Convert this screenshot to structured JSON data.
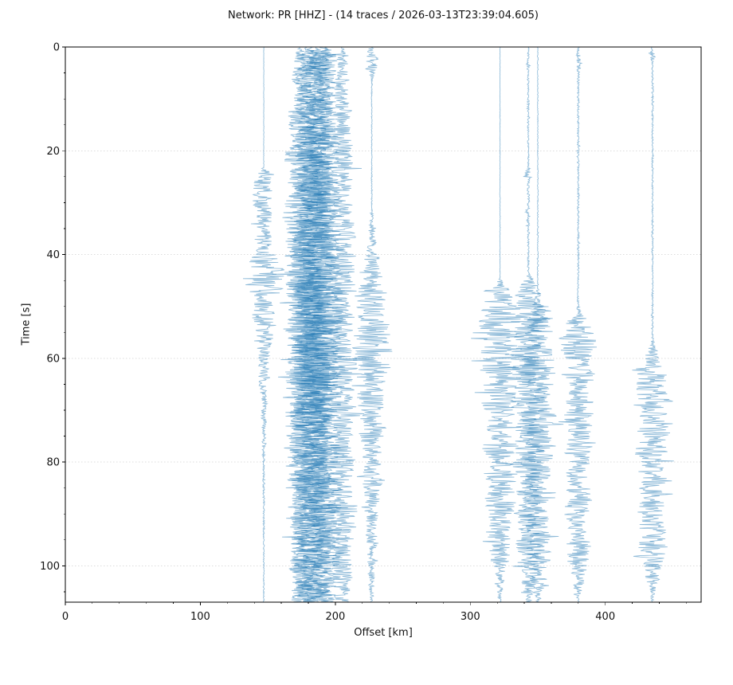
{
  "figure": {
    "network": "PR",
    "channel": "HHZ",
    "trace_count": 14,
    "timestamp": "2026-03-13T23:39:04.605"
  },
  "chart_data": {
    "type": "line",
    "variant": "seismic-record-section",
    "title": "Network: PR [HHZ] - (14 traces / 2026-03-13T23:39:04.605)",
    "xlabel": "Offset [km]",
    "ylabel": "Time [s]",
    "xlim": [
      0,
      471
    ],
    "ylim": [
      0,
      107
    ],
    "y_inverted": true,
    "x_major_ticks": [
      0,
      100,
      200,
      300,
      400
    ],
    "x_minor_step": 20,
    "y_major_ticks": [
      0,
      20,
      40,
      60,
      80,
      100
    ],
    "y_minor_step": 5,
    "grid": {
      "horizontal": true,
      "vertical": false,
      "color": "#dcdcdc",
      "style": "dotted"
    },
    "trace_color": "#1f77b4",
    "trace_alpha": 0.5,
    "spine_color": "#000000",
    "traces": [
      {
        "offset_km": 147,
        "seed": 101,
        "envelope": [
          [
            0,
            0.18
          ],
          [
            23.2,
            0.2
          ],
          [
            24,
            5
          ],
          [
            26,
            8.5
          ],
          [
            29,
            9.5
          ],
          [
            33,
            8
          ],
          [
            36,
            6
          ],
          [
            39,
            9
          ],
          [
            41,
            16
          ],
          [
            43,
            19
          ],
          [
            46,
            18
          ],
          [
            49,
            14
          ],
          [
            53,
            10.5
          ],
          [
            57,
            8
          ],
          [
            62,
            5.5
          ],
          [
            67,
            3.5
          ],
          [
            73,
            2.2
          ],
          [
            80,
            1.2
          ],
          [
            88,
            0.7
          ],
          [
            100,
            0.55
          ],
          [
            107,
            0.5
          ]
        ]
      },
      {
        "offset_km": 174,
        "seed": 202,
        "envelope": [
          [
            0,
            0.6
          ],
          [
            1,
            4.5
          ],
          [
            6,
            8.5
          ],
          [
            15,
            10.5
          ],
          [
            28,
            12.5
          ],
          [
            42,
            14.5
          ],
          [
            55,
            14
          ],
          [
            68,
            12
          ],
          [
            80,
            11
          ],
          [
            92,
            10
          ],
          [
            100,
            9
          ],
          [
            107,
            8.5
          ]
        ]
      },
      {
        "offset_km": 178,
        "seed": 303,
        "envelope": [
          [
            0,
            1
          ],
          [
            1.5,
            9.5
          ],
          [
            3,
            7
          ],
          [
            10,
            10.5
          ],
          [
            22,
            12.5
          ],
          [
            36,
            14.5
          ],
          [
            50,
            16.5
          ],
          [
            62,
            15
          ],
          [
            75,
            13
          ],
          [
            88,
            12
          ],
          [
            100,
            11
          ],
          [
            107,
            10
          ]
        ]
      },
      {
        "offset_km": 182,
        "seed": 404,
        "envelope": [
          [
            0,
            1.4
          ],
          [
            2,
            11.5
          ],
          [
            5,
            8.5
          ],
          [
            14,
            11.5
          ],
          [
            27,
            13.5
          ],
          [
            41,
            15.5
          ],
          [
            54,
            16.5
          ],
          [
            67,
            15
          ],
          [
            80,
            13
          ],
          [
            93,
            12
          ],
          [
            103,
            11
          ],
          [
            107,
            9
          ]
        ]
      },
      {
        "offset_km": 186,
        "seed": 505,
        "envelope": [
          [
            0,
            1
          ],
          [
            2.5,
            12.5
          ],
          [
            6,
            9.5
          ],
          [
            16,
            11.5
          ],
          [
            30,
            14.5
          ],
          [
            45,
            16.5
          ],
          [
            58,
            15.5
          ],
          [
            70,
            14
          ],
          [
            83,
            12
          ],
          [
            96,
            11
          ],
          [
            107,
            10
          ]
        ]
      },
      {
        "offset_km": 190,
        "seed": 606,
        "envelope": [
          [
            0,
            1.8
          ],
          [
            1.2,
            13.5
          ],
          [
            4,
            8.5
          ],
          [
            12,
            10.5
          ],
          [
            25,
            12.5
          ],
          [
            40,
            15.5
          ],
          [
            53,
            16.5
          ],
          [
            66,
            15
          ],
          [
            79,
            13
          ],
          [
            91,
            12
          ],
          [
            102,
            10
          ],
          [
            107,
            9
          ]
        ]
      },
      {
        "offset_km": 194,
        "seed": 707,
        "envelope": [
          [
            0,
            1
          ],
          [
            2,
            10.5
          ],
          [
            8,
            8.5
          ],
          [
            20,
            11.5
          ],
          [
            34,
            13.5
          ],
          [
            48,
            15.5
          ],
          [
            61,
            14
          ],
          [
            74,
            13
          ],
          [
            86,
            12
          ],
          [
            97,
            10
          ],
          [
            104,
            9
          ],
          [
            107,
            7
          ]
        ]
      },
      {
        "offset_km": 205,
        "seed": 808,
        "envelope": [
          [
            0,
            0.5
          ],
          [
            1.5,
            5.5
          ],
          [
            6,
            6.5
          ],
          [
            16,
            8.5
          ],
          [
            30,
            10.5
          ],
          [
            44,
            12.5
          ],
          [
            57,
            11.5
          ],
          [
            70,
            11
          ],
          [
            82,
            10
          ],
          [
            90,
            12
          ],
          [
            96,
            9
          ],
          [
            101,
            11
          ],
          [
            104,
            8
          ],
          [
            107,
            7
          ]
        ]
      },
      {
        "offset_km": 227,
        "seed": 909,
        "envelope": [
          [
            0,
            0.3
          ],
          [
            0.6,
            4.5
          ],
          [
            2,
            6.5
          ],
          [
            4,
            4
          ],
          [
            6,
            1.5
          ],
          [
            7.5,
            0.5
          ],
          [
            25,
            0.4
          ],
          [
            31,
            0.6
          ],
          [
            33,
            1.8
          ],
          [
            36,
            3.5
          ],
          [
            40,
            6.5
          ],
          [
            44,
            10.5
          ],
          [
            48,
            14.5
          ],
          [
            54,
            16.5
          ],
          [
            60,
            16.5
          ],
          [
            66,
            14.5
          ],
          [
            72,
            12
          ],
          [
            78,
            10
          ],
          [
            85,
            8
          ],
          [
            92,
            6
          ],
          [
            98,
            4.5
          ],
          [
            103,
            3
          ],
          [
            107,
            1
          ]
        ]
      },
      {
        "offset_km": 322,
        "seed": 1001,
        "envelope": [
          [
            0,
            0.22
          ],
          [
            44.5,
            0.25
          ],
          [
            45.5,
            3
          ],
          [
            47,
            8
          ],
          [
            49,
            13.5
          ],
          [
            52,
            17.5
          ],
          [
            57,
            19.5
          ],
          [
            63,
            17
          ],
          [
            70,
            15
          ],
          [
            77,
            16
          ],
          [
            84,
            14
          ],
          [
            90,
            12
          ],
          [
            95,
            9
          ],
          [
            100,
            6.5
          ],
          [
            103,
            4
          ],
          [
            105.5,
            1.8
          ],
          [
            107,
            0.9
          ]
        ]
      },
      {
        "offset_km": 343,
        "seed": 1102,
        "envelope": [
          [
            0,
            0.65
          ],
          [
            2.5,
            0.9
          ],
          [
            3.2,
            3.2
          ],
          [
            4.5,
            0.9
          ],
          [
            23,
            0.7
          ],
          [
            24.5,
            3.4
          ],
          [
            26,
            0.8
          ],
          [
            33,
            1.8
          ],
          [
            35,
            0.8
          ],
          [
            43.5,
            0.8
          ],
          [
            44.5,
            4
          ],
          [
            46,
            9
          ],
          [
            49,
            13.5
          ],
          [
            53,
            15.5
          ],
          [
            59,
            14
          ],
          [
            66,
            15
          ],
          [
            73,
            14
          ],
          [
            80,
            14
          ],
          [
            87,
            13
          ],
          [
            93,
            12
          ],
          [
            99,
            10
          ],
          [
            103,
            7
          ],
          [
            106,
            3
          ],
          [
            107,
            2
          ]
        ]
      },
      {
        "offset_km": 350,
        "seed": 1203,
        "envelope": [
          [
            0,
            0.35
          ],
          [
            46.5,
            0.4
          ],
          [
            48,
            2.5
          ],
          [
            50,
            7
          ],
          [
            53,
            11
          ],
          [
            57,
            13.5
          ],
          [
            62,
            15
          ],
          [
            68,
            14
          ],
          [
            74,
            15
          ],
          [
            81,
            13
          ],
          [
            88,
            12
          ],
          [
            94,
            11
          ],
          [
            100,
            9.5
          ],
          [
            104,
            6
          ],
          [
            106.5,
            2.5
          ],
          [
            107,
            2
          ]
        ]
      },
      {
        "offset_km": 380,
        "seed": 1304,
        "envelope": [
          [
            0,
            1
          ],
          [
            3.5,
            2.2
          ],
          [
            5.5,
            1
          ],
          [
            20,
            0.9
          ],
          [
            50,
            0.9
          ],
          [
            51.5,
            3
          ],
          [
            53,
            10
          ],
          [
            55,
            15
          ],
          [
            57,
            15
          ],
          [
            61,
            13
          ],
          [
            66,
            12
          ],
          [
            71,
            12.5
          ],
          [
            77,
            12
          ],
          [
            83,
            11
          ],
          [
            89,
            10.5
          ],
          [
            95,
            9.5
          ],
          [
            100,
            8
          ],
          [
            103.5,
            5
          ],
          [
            106,
            2
          ],
          [
            107,
            0.8
          ]
        ]
      },
      {
        "offset_km": 435,
        "seed": 1405,
        "envelope": [
          [
            0,
            0.7
          ],
          [
            1.8,
            2.8
          ],
          [
            3,
            0.8
          ],
          [
            40,
            0.7
          ],
          [
            56,
            0.7
          ],
          [
            57.5,
            2.5
          ],
          [
            59,
            7
          ],
          [
            61,
            12
          ],
          [
            64,
            16
          ],
          [
            69,
            17
          ],
          [
            75,
            15
          ],
          [
            81,
            13
          ],
          [
            87,
            12.5
          ],
          [
            93,
            12
          ],
          [
            99,
            11
          ],
          [
            102,
            8
          ],
          [
            104.5,
            4
          ],
          [
            106.5,
            1.5
          ],
          [
            107,
            1
          ]
        ]
      }
    ]
  }
}
